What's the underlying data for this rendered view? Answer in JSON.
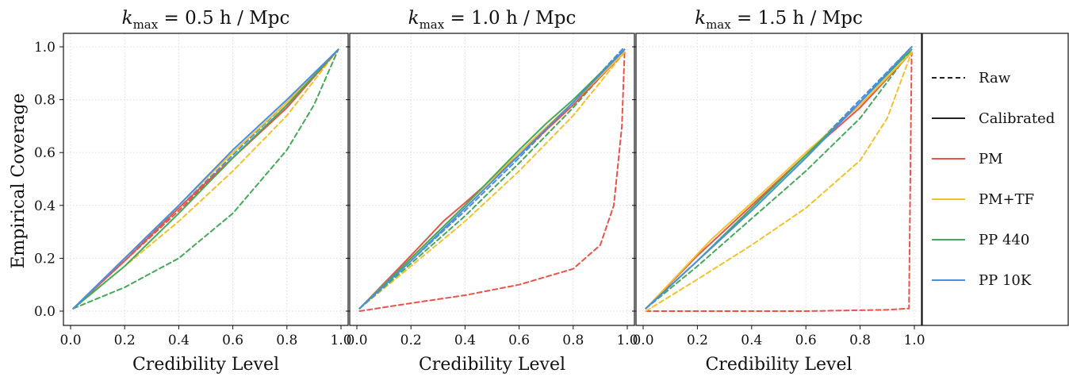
{
  "figure": {
    "ylabel": "Empirical Coverage"
  },
  "legend": {
    "entries": [
      {
        "label": "Raw",
        "color": "#222222",
        "style": "dashed"
      },
      {
        "label": "Calibrated",
        "color": "#222222",
        "style": "solid"
      },
      {
        "label": "PM",
        "color": "#e8534a",
        "style": "solid"
      },
      {
        "label": "PM+TF",
        "color": "#f2c12e",
        "style": "solid"
      },
      {
        "label": "PP 440",
        "color": "#45a85a",
        "style": "solid"
      },
      {
        "label": "PP 10K",
        "color": "#4a8ee0",
        "style": "solid"
      }
    ]
  },
  "chart_data": [
    {
      "type": "line",
      "title_prefix": "k",
      "title_sub": "max",
      "title_suffix": " = 0.5 h / Mpc",
      "xlabel": "Credibility Level",
      "xlim": [
        0,
        1
      ],
      "ylim": [
        0,
        1
      ],
      "xticks": [
        "0.0",
        "0.2",
        "0.4",
        "0.6",
        "0.8",
        "1.0"
      ],
      "yticks": [
        "0.0",
        "0.2",
        "0.4",
        "0.6",
        "0.8",
        "1.0"
      ],
      "grid": true,
      "series": [
        {
          "model": "PM",
          "color": "#e8534a",
          "style": "dashed",
          "x": [
            0.01,
            0.2,
            0.4,
            0.6,
            0.8,
            0.99
          ],
          "y": [
            0.01,
            0.19,
            0.38,
            0.58,
            0.77,
            0.99
          ]
        },
        {
          "model": "PM+TF",
          "color": "#f2c12e",
          "style": "dashed",
          "x": [
            0.01,
            0.2,
            0.4,
            0.6,
            0.8,
            0.99
          ],
          "y": [
            0.01,
            0.17,
            0.34,
            0.53,
            0.74,
            0.99
          ]
        },
        {
          "model": "PP 440",
          "color": "#45a85a",
          "style": "dashed",
          "x": [
            0.01,
            0.2,
            0.4,
            0.6,
            0.8,
            0.9,
            0.99
          ],
          "y": [
            0.01,
            0.09,
            0.2,
            0.37,
            0.61,
            0.78,
            0.99
          ]
        },
        {
          "model": "PP 10K",
          "color": "#4a8ee0",
          "style": "dashed",
          "x": [
            0.01,
            0.2,
            0.4,
            0.6,
            0.8,
            0.99
          ],
          "y": [
            0.01,
            0.2,
            0.39,
            0.59,
            0.79,
            0.99
          ]
        },
        {
          "model": "PM",
          "color": "#e8534a",
          "style": "solid",
          "x": [
            0.01,
            0.2,
            0.4,
            0.6,
            0.8,
            0.99
          ],
          "y": [
            0.01,
            0.19,
            0.39,
            0.58,
            0.77,
            0.99
          ]
        },
        {
          "model": "PM+TF",
          "color": "#f2c12e",
          "style": "solid",
          "x": [
            0.01,
            0.2,
            0.4,
            0.6,
            0.8,
            0.99
          ],
          "y": [
            0.01,
            0.2,
            0.4,
            0.6,
            0.79,
            0.99
          ]
        },
        {
          "model": "PP 440",
          "color": "#45a85a",
          "style": "solid",
          "x": [
            0.01,
            0.2,
            0.4,
            0.6,
            0.8,
            0.99
          ],
          "y": [
            0.01,
            0.17,
            0.37,
            0.58,
            0.78,
            0.99
          ]
        },
        {
          "model": "PP 10K",
          "color": "#4a8ee0",
          "style": "solid",
          "x": [
            0.01,
            0.2,
            0.4,
            0.6,
            0.8,
            0.99
          ],
          "y": [
            0.01,
            0.2,
            0.4,
            0.61,
            0.8,
            0.99
          ]
        }
      ]
    },
    {
      "type": "line",
      "title_prefix": "k",
      "title_sub": "max",
      "title_suffix": " = 1.0 h / Mpc",
      "xlabel": "Credibility Level",
      "xlim": [
        0,
        1
      ],
      "ylim": [
        0,
        1
      ],
      "xticks": [
        "0.0",
        "0.2",
        "0.4",
        "0.6",
        "0.8",
        "1.0"
      ],
      "yticks": [
        "0.0",
        "0.2",
        "0.4",
        "0.6",
        "0.8",
        "1.0"
      ],
      "grid": true,
      "series": [
        {
          "model": "PM",
          "color": "#e8534a",
          "style": "dashed",
          "x": [
            0.01,
            0.2,
            0.4,
            0.6,
            0.8,
            0.9,
            0.95,
            0.98,
            0.99
          ],
          "y": [
            0.0,
            0.03,
            0.06,
            0.1,
            0.16,
            0.25,
            0.4,
            0.7,
            0.98
          ]
        },
        {
          "model": "PM+TF",
          "color": "#f2c12e",
          "style": "dashed",
          "x": [
            0.01,
            0.2,
            0.4,
            0.6,
            0.8,
            0.99
          ],
          "y": [
            0.01,
            0.17,
            0.34,
            0.53,
            0.74,
            0.98
          ]
        },
        {
          "model": "PP 440",
          "color": "#45a85a",
          "style": "dashed",
          "x": [
            0.01,
            0.2,
            0.4,
            0.6,
            0.8,
            0.99
          ],
          "y": [
            0.01,
            0.18,
            0.36,
            0.56,
            0.77,
            0.99
          ]
        },
        {
          "model": "PP 10K",
          "color": "#4a8ee0",
          "style": "dashed",
          "x": [
            0.01,
            0.2,
            0.4,
            0.6,
            0.8,
            0.99
          ],
          "y": [
            0.01,
            0.19,
            0.38,
            0.58,
            0.79,
            1.0
          ]
        },
        {
          "model": "PM",
          "color": "#e8534a",
          "style": "solid",
          "x": [
            0.01,
            0.2,
            0.32,
            0.4,
            0.6,
            0.8,
            0.99
          ],
          "y": [
            0.01,
            0.21,
            0.34,
            0.41,
            0.59,
            0.78,
            0.98
          ]
        },
        {
          "model": "PM+TF",
          "color": "#f2c12e",
          "style": "solid",
          "x": [
            0.01,
            0.2,
            0.4,
            0.6,
            0.8,
            0.99
          ],
          "y": [
            0.01,
            0.2,
            0.4,
            0.6,
            0.79,
            0.98
          ]
        },
        {
          "model": "PP 440",
          "color": "#45a85a",
          "style": "solid",
          "x": [
            0.01,
            0.2,
            0.4,
            0.6,
            0.7,
            0.8,
            0.99
          ],
          "y": [
            0.01,
            0.2,
            0.4,
            0.61,
            0.71,
            0.8,
            0.99
          ]
        },
        {
          "model": "PP 10K",
          "color": "#4a8ee0",
          "style": "solid",
          "x": [
            0.01,
            0.2,
            0.4,
            0.6,
            0.8,
            0.99
          ],
          "y": [
            0.01,
            0.19,
            0.39,
            0.59,
            0.79,
            0.99
          ]
        }
      ]
    },
    {
      "type": "line",
      "title_prefix": "k",
      "title_sub": "max",
      "title_suffix": " = 1.5 h / Mpc",
      "xlabel": "Credibility Level",
      "xlim": [
        0,
        1
      ],
      "ylim": [
        0,
        1
      ],
      "xticks": [
        "0.0",
        "0.2",
        "0.4",
        "0.6",
        "0.8",
        "1.0"
      ],
      "yticks": [
        "0.0",
        "0.2",
        "0.4",
        "0.6",
        "0.8",
        "1.0"
      ],
      "grid": true,
      "series": [
        {
          "model": "PM",
          "color": "#e8534a",
          "style": "dashed",
          "x": [
            0.01,
            0.3,
            0.6,
            0.9,
            0.98,
            0.985,
            0.99
          ],
          "y": [
            0.0,
            0.0,
            0.0,
            0.005,
            0.01,
            0.5,
            0.98
          ]
        },
        {
          "model": "PM+TF",
          "color": "#f2c12e",
          "style": "dashed",
          "x": [
            0.01,
            0.2,
            0.4,
            0.6,
            0.8,
            0.9,
            0.99
          ],
          "y": [
            0.0,
            0.12,
            0.25,
            0.39,
            0.57,
            0.73,
            0.98
          ]
        },
        {
          "model": "PP 440",
          "color": "#45a85a",
          "style": "dashed",
          "x": [
            0.01,
            0.2,
            0.4,
            0.6,
            0.8,
            0.99
          ],
          "y": [
            0.01,
            0.17,
            0.35,
            0.53,
            0.73,
            0.99
          ]
        },
        {
          "model": "PP 10K",
          "color": "#4a8ee0",
          "style": "dashed",
          "x": [
            0.01,
            0.2,
            0.4,
            0.6,
            0.8,
            0.99
          ],
          "y": [
            0.01,
            0.19,
            0.39,
            0.59,
            0.8,
            1.0
          ]
        },
        {
          "model": "PM",
          "color": "#e8534a",
          "style": "solid",
          "x": [
            0.01,
            0.2,
            0.4,
            0.6,
            0.8,
            0.99
          ],
          "y": [
            0.01,
            0.21,
            0.4,
            0.59,
            0.77,
            0.98
          ]
        },
        {
          "model": "PM+TF",
          "color": "#f2c12e",
          "style": "solid",
          "x": [
            0.01,
            0.25,
            0.4,
            0.6,
            0.8,
            0.99
          ],
          "y": [
            0.01,
            0.27,
            0.41,
            0.6,
            0.78,
            0.98
          ]
        },
        {
          "model": "PP 440",
          "color": "#45a85a",
          "style": "solid",
          "x": [
            0.01,
            0.2,
            0.4,
            0.6,
            0.8,
            0.99
          ],
          "y": [
            0.01,
            0.19,
            0.39,
            0.59,
            0.79,
            0.99
          ]
        },
        {
          "model": "PP 10K",
          "color": "#4a8ee0",
          "style": "solid",
          "x": [
            0.01,
            0.2,
            0.4,
            0.6,
            0.8,
            0.99
          ],
          "y": [
            0.01,
            0.19,
            0.38,
            0.58,
            0.79,
            1.0
          ]
        }
      ]
    }
  ]
}
